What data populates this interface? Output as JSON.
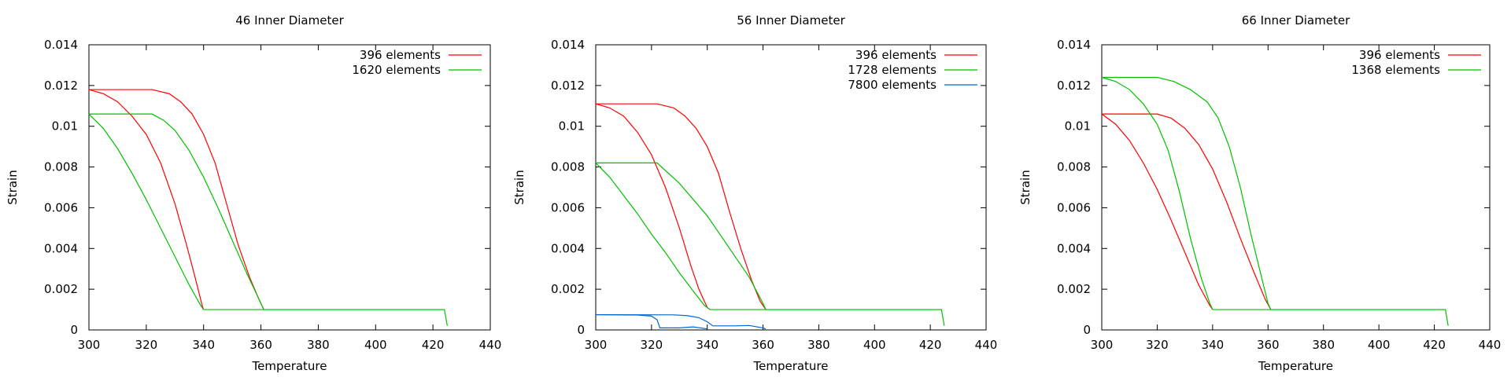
{
  "chart_data": [
    {
      "type": "line",
      "title": "46 Inner Diameter",
      "xlabel": "Temperature",
      "ylabel": "Strain",
      "xlim": [
        300,
        440
      ],
      "ylim": [
        0,
        0.014
      ],
      "xticks": [
        "300",
        "320",
        "340",
        "360",
        "380",
        "400",
        "420",
        "440"
      ],
      "yticks": [
        "0",
        "0.002",
        "0.004",
        "0.006",
        "0.008",
        "0.01",
        "0.012",
        "0.014"
      ],
      "grid": false,
      "legend": "top-right",
      "series": [
        {
          "name": "396 elements",
          "color": "#ff0000",
          "segments": [
            [
              [
                300,
                0.0118
              ],
              [
                305,
                0.0116
              ],
              [
                310,
                0.0112
              ],
              [
                315,
                0.0105
              ],
              [
                320,
                0.0096
              ],
              [
                325,
                0.0082
              ],
              [
                330,
                0.0062
              ],
              [
                334,
                0.0042
              ],
              [
                337,
                0.0026
              ],
              [
                339.5,
                0.0012
              ],
              [
                340,
                0.001
              ]
            ],
            [
              [
                300,
                0.0118
              ],
              [
                322,
                0.0118
              ],
              [
                328,
                0.0116
              ],
              [
                332,
                0.0112
              ],
              [
                336,
                0.0106
              ],
              [
                340,
                0.0096
              ],
              [
                344,
                0.0082
              ],
              [
                348,
                0.0062
              ],
              [
                352,
                0.0042
              ],
              [
                356,
                0.0026
              ],
              [
                359,
                0.0016
              ],
              [
                361,
                0.001
              ]
            ]
          ]
        },
        {
          "name": "1620 elements",
          "color": "#00c000",
          "segments": [
            [
              [
                300,
                0.0106
              ],
              [
                305,
                0.0099
              ],
              [
                310,
                0.0089
              ],
              [
                315,
                0.0077
              ],
              [
                320,
                0.0064
              ],
              [
                325,
                0.005
              ],
              [
                330,
                0.0036
              ],
              [
                335,
                0.0022
              ],
              [
                339,
                0.0012
              ],
              [
                340,
                0.001
              ],
              [
                424,
                0.001
              ]
            ],
            [
              [
                300,
                0.0106
              ],
              [
                322,
                0.0106
              ],
              [
                326,
                0.0103
              ],
              [
                330,
                0.0098
              ],
              [
                335,
                0.0088
              ],
              [
                340,
                0.0075
              ],
              [
                345,
                0.006
              ],
              [
                350,
                0.0044
              ],
              [
                355,
                0.0028
              ],
              [
                359,
                0.0016
              ],
              [
                361,
                0.001
              ],
              [
                424,
                0.001
              ],
              [
                424.5,
                0.0006
              ],
              [
                425,
                0.0002
              ]
            ]
          ]
        }
      ]
    },
    {
      "type": "line",
      "title": "56 Inner Diameter",
      "xlabel": "Temperature",
      "ylabel": "Strain",
      "xlim": [
        300,
        440
      ],
      "ylim": [
        0,
        0.014
      ],
      "xticks": [
        "300",
        "320",
        "340",
        "360",
        "380",
        "400",
        "420",
        "440"
      ],
      "yticks": [
        "0",
        "0.002",
        "0.004",
        "0.006",
        "0.008",
        "0.01",
        "0.012",
        "0.014"
      ],
      "grid": false,
      "legend": "top-right",
      "series": [
        {
          "name": "396 elements",
          "color": "#ff0000",
          "segments": [
            [
              [
                300,
                0.0111
              ],
              [
                305,
                0.0109
              ],
              [
                310,
                0.0105
              ],
              [
                315,
                0.0097
              ],
              [
                320,
                0.0086
              ],
              [
                325,
                0.007
              ],
              [
                330,
                0.005
              ],
              [
                334,
                0.0032
              ],
              [
                337,
                0.002
              ],
              [
                340,
                0.0011
              ],
              [
                341,
                0.001
              ]
            ],
            [
              [
                300,
                0.0111
              ],
              [
                322,
                0.0111
              ],
              [
                328,
                0.0109
              ],
              [
                332,
                0.0105
              ],
              [
                336,
                0.0099
              ],
              [
                340,
                0.009
              ],
              [
                344,
                0.0077
              ],
              [
                348,
                0.0058
              ],
              [
                352,
                0.004
              ],
              [
                356,
                0.0024
              ],
              [
                359,
                0.0014
              ],
              [
                361,
                0.001
              ]
            ]
          ]
        },
        {
          "name": "1728 elements",
          "color": "#00c000",
          "segments": [
            [
              [
                300,
                0.0082
              ],
              [
                305,
                0.0075
              ],
              [
                310,
                0.0066
              ],
              [
                315,
                0.0057
              ],
              [
                320,
                0.0047
              ],
              [
                325,
                0.0038
              ],
              [
                330,
                0.0028
              ],
              [
                335,
                0.0019
              ],
              [
                339,
                0.0012
              ],
              [
                341,
                0.001
              ],
              [
                424,
                0.001
              ]
            ],
            [
              [
                300,
                0.0082
              ],
              [
                322,
                0.0082
              ],
              [
                330,
                0.0072
              ],
              [
                340,
                0.0056
              ],
              [
                350,
                0.0036
              ],
              [
                355,
                0.0026
              ],
              [
                360,
                0.0013
              ],
              [
                361,
                0.001
              ],
              [
                424,
                0.001
              ],
              [
                424.5,
                0.0006
              ],
              [
                425,
                0.0002
              ]
            ]
          ]
        },
        {
          "name": "7800 elements",
          "color": "#0066cc",
          "segments": [
            [
              [
                300,
                0.00075
              ],
              [
                315,
                0.00073
              ],
              [
                320,
                0.00068
              ],
              [
                322,
                0.0005
              ],
              [
                323,
                0.0001
              ],
              [
                330,
                0.0001
              ],
              [
                335,
                0.00015
              ],
              [
                340,
                5e-05
              ]
            ],
            [
              [
                300,
                0.00075
              ],
              [
                328,
                0.00074
              ],
              [
                333,
                0.0007
              ],
              [
                337,
                0.0006
              ],
              [
                340,
                0.0004
              ],
              [
                342,
                0.0002
              ],
              [
                350,
                0.0002
              ],
              [
                355,
                0.00022
              ],
              [
                360,
                0.0001
              ],
              [
                361,
                5e-05
              ]
            ]
          ]
        }
      ]
    },
    {
      "type": "line",
      "title": "66 Inner Diameter",
      "xlabel": "Temperature",
      "ylabel": "Strain",
      "xlim": [
        300,
        440
      ],
      "ylim": [
        0,
        0.014
      ],
      "xticks": [
        "300",
        "320",
        "340",
        "360",
        "380",
        "400",
        "420",
        "440"
      ],
      "yticks": [
        "0",
        "0.002",
        "0.004",
        "0.006",
        "0.008",
        "0.01",
        "0.012",
        "0.014"
      ],
      "grid": false,
      "legend": "top-right",
      "series": [
        {
          "name": "396 elements",
          "color": "#ff0000",
          "segments": [
            [
              [
                300,
                0.0106
              ],
              [
                305,
                0.0101
              ],
              [
                310,
                0.0093
              ],
              [
                315,
                0.0082
              ],
              [
                320,
                0.0069
              ],
              [
                325,
                0.0054
              ],
              [
                330,
                0.0038
              ],
              [
                335,
                0.0022
              ],
              [
                339,
                0.0012
              ],
              [
                340,
                0.001
              ]
            ],
            [
              [
                300,
                0.0106
              ],
              [
                320,
                0.0106
              ],
              [
                325,
                0.0104
              ],
              [
                330,
                0.0099
              ],
              [
                335,
                0.0091
              ],
              [
                340,
                0.0079
              ],
              [
                345,
                0.0063
              ],
              [
                350,
                0.0045
              ],
              [
                355,
                0.0028
              ],
              [
                359,
                0.0015
              ],
              [
                361,
                0.001
              ]
            ]
          ]
        },
        {
          "name": "1368 elements",
          "color": "#00c000",
          "segments": [
            [
              [
                300,
                0.0124
              ],
              [
                305,
                0.0122
              ],
              [
                310,
                0.0118
              ],
              [
                315,
                0.0111
              ],
              [
                320,
                0.0101
              ],
              [
                324,
                0.0088
              ],
              [
                328,
                0.0068
              ],
              [
                332,
                0.0045
              ],
              [
                336,
                0.0025
              ],
              [
                339,
                0.0013
              ],
              [
                340,
                0.001
              ],
              [
                424,
                0.001
              ]
            ],
            [
              [
                300,
                0.0124
              ],
              [
                320,
                0.0124
              ],
              [
                326,
                0.0122
              ],
              [
                332,
                0.0118
              ],
              [
                338,
                0.0112
              ],
              [
                342,
                0.0104
              ],
              [
                346,
                0.009
              ],
              [
                350,
                0.007
              ],
              [
                354,
                0.0046
              ],
              [
                358,
                0.0024
              ],
              [
                360,
                0.0013
              ],
              [
                361,
                0.001
              ],
              [
                424,
                0.001
              ],
              [
                424.5,
                0.0006
              ],
              [
                425,
                0.0002
              ]
            ]
          ]
        }
      ]
    }
  ]
}
